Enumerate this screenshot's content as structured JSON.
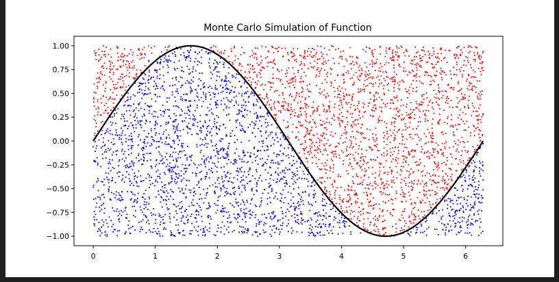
{
  "chart_data": {
    "type": "scatter",
    "title": "Monte Carlo Simulation of Function",
    "xlabel": "",
    "ylabel": "",
    "xlim": [
      -0.31,
      6.6
    ],
    "ylim": [
      -1.1,
      1.1
    ],
    "x_ticks": [
      0,
      1,
      2,
      3,
      4,
      5,
      6
    ],
    "y_ticks": [
      1.0,
      0.75,
      0.5,
      0.25,
      0.0,
      -0.25,
      -0.5,
      -0.75,
      -1.0
    ],
    "x_tick_labels": [
      "0",
      "1",
      "2",
      "3",
      "4",
      "5",
      "6"
    ],
    "y_tick_labels": [
      "1.00",
      "0.75",
      "0.50",
      "0.25",
      "0.00",
      "−0.25",
      "−0.50",
      "−0.75",
      "−1.00"
    ],
    "grid": false,
    "legend": "none",
    "point_count": 5000,
    "sample_domain": {
      "x": [
        0,
        6.283
      ],
      "y": [
        -1,
        1
      ]
    },
    "function": "sin(x)",
    "series": [
      {
        "role": "below curve",
        "color": "#0000ff"
      },
      {
        "role": "above curve",
        "color": "#ff0000"
      },
      {
        "role": "curve",
        "color": "#000000"
      }
    ]
  }
}
